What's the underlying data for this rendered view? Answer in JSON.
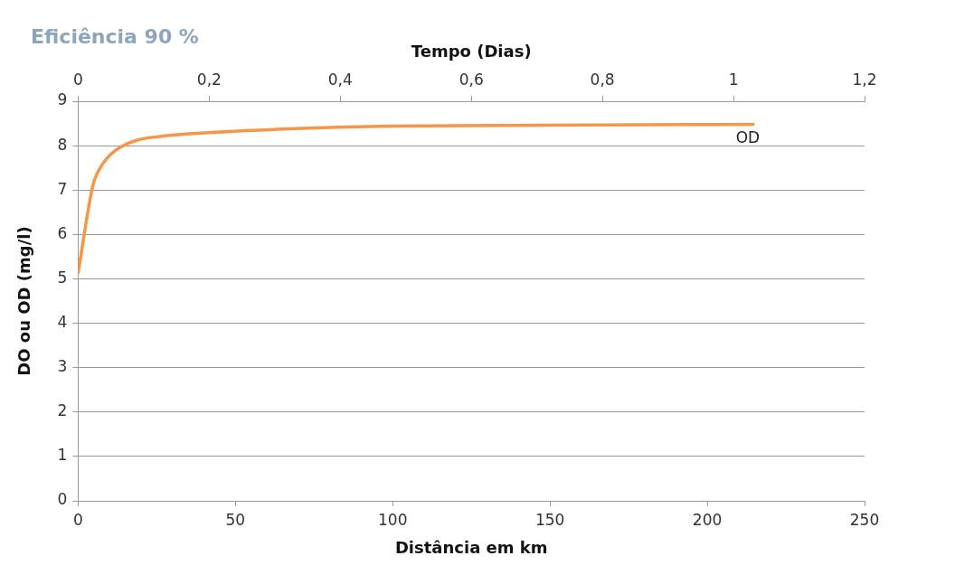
{
  "chart_data": {
    "type": "line",
    "title": "Eficiência 90 %",
    "xlabel": "Distância em km",
    "x2label": "Tempo (Dias)",
    "ylabel": "DO ou OD (mg/l)",
    "series": [
      {
        "name": "OD",
        "color": "#f79646",
        "x": [
          0,
          4.7,
          6.6,
          9.6,
          13.6,
          18.5,
          26.5,
          41.3,
          71,
          100,
          150,
          214.6
        ],
        "values": [
          5.14,
          7.11,
          7.45,
          7.75,
          7.97,
          8.12,
          8.21,
          8.29,
          8.39,
          8.44,
          8.46,
          8.48
        ]
      }
    ],
    "xlim": [
      0,
      250
    ],
    "xticks": [
      0,
      50,
      100,
      150,
      200,
      250
    ],
    "x2lim": [
      0,
      1.2
    ],
    "x2ticks": [
      0,
      {
        "value": 0.2,
        "label": "0,2"
      },
      {
        "value": 0.4,
        "label": "0,4"
      },
      {
        "value": 0.6,
        "label": "0,6"
      },
      {
        "value": 0.8,
        "label": "0,8"
      },
      1,
      {
        "value": 1.2,
        "label": "1,2"
      }
    ],
    "ylim": [
      0,
      9
    ],
    "yticks": [
      0,
      1,
      2,
      3,
      4,
      5,
      6,
      7,
      8,
      9
    ],
    "grid": "y",
    "legend": false,
    "marker": "none",
    "line_style": "solid"
  }
}
